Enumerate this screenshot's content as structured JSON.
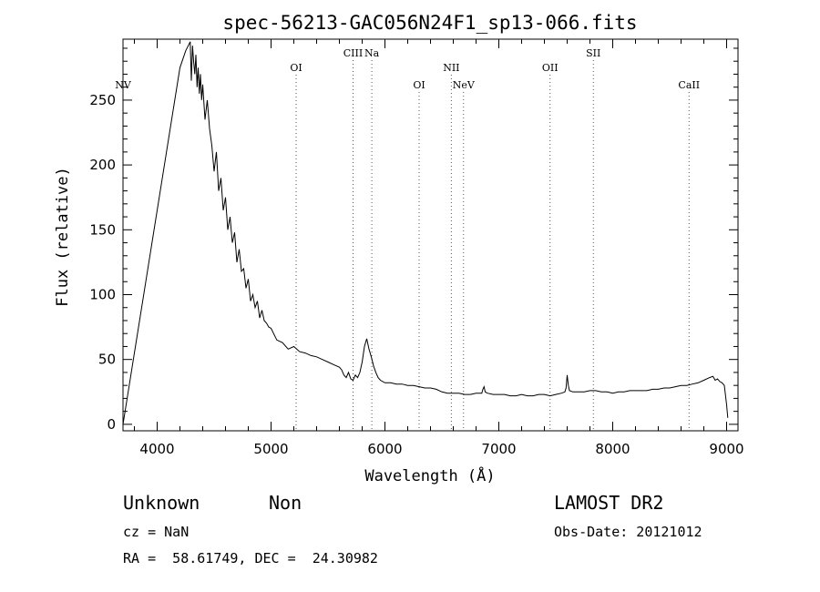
{
  "chart_data": {
    "type": "line",
    "title": "spec-56213-GAC056N24F1_sp13-066.fits",
    "xlabel": "Wavelength (Å)",
    "ylabel": "Flux (relative)",
    "xlim": [
      3700,
      9100
    ],
    "ylim": [
      -5,
      297
    ],
    "xticks": [
      4000,
      5000,
      6000,
      7000,
      8000,
      9000
    ],
    "yticks": [
      0,
      50,
      100,
      150,
      200,
      250
    ],
    "grid": false,
    "series": [
      {
        "x": [
          3700,
          3800,
          3900,
          4000,
          4100,
          4200,
          4250,
          4290,
          4300,
          4310,
          4320,
          4330,
          4340,
          4350,
          4360,
          4370,
          4380,
          4390,
          4400,
          4420,
          4440,
          4460,
          4480,
          4500,
          4520,
          4540,
          4560,
          4580,
          4600,
          4620,
          4640,
          4660,
          4680,
          4700,
          4720,
          4740,
          4760,
          4780,
          4800,
          4820,
          4840,
          4860,
          4880,
          4900,
          4920,
          4940,
          4960,
          4980,
          5000,
          5050,
          5100,
          5150,
          5200,
          5250,
          5300,
          5350,
          5400,
          5450,
          5500,
          5550,
          5600,
          5620,
          5640,
          5660,
          5680,
          5700,
          5720,
          5740,
          5760,
          5780,
          5800,
          5820,
          5840,
          5860,
          5880,
          5900,
          5920,
          5940,
          5960,
          6000,
          6050,
          6100,
          6150,
          6200,
          6250,
          6300,
          6350,
          6400,
          6450,
          6500,
          6550,
          6600,
          6650,
          6700,
          6750,
          6800,
          6850,
          6860,
          6870,
          6880,
          6900,
          6950,
          7000,
          7050,
          7100,
          7150,
          7200,
          7250,
          7300,
          7350,
          7400,
          7450,
          7500,
          7550,
          7580,
          7590,
          7600,
          7610,
          7620,
          7650,
          7700,
          7750,
          7800,
          7850,
          7900,
          7950,
          8000,
          8050,
          8100,
          8150,
          8200,
          8250,
          8300,
          8350,
          8400,
          8450,
          8500,
          8550,
          8600,
          8650,
          8700,
          8750,
          8800,
          8850,
          8880,
          8900,
          8920,
          8940,
          8960,
          8980,
          9000,
          9010
        ],
        "y": [
          0,
          55,
          110,
          165,
          220,
          275,
          288,
          295,
          265,
          292,
          280,
          270,
          285,
          260,
          275,
          255,
          270,
          250,
          262,
          235,
          250,
          228,
          215,
          195,
          210,
          180,
          190,
          165,
          175,
          150,
          160,
          140,
          148,
          125,
          135,
          118,
          120,
          105,
          112,
          95,
          100,
          90,
          95,
          82,
          88,
          80,
          78,
          75,
          74,
          65,
          63,
          58,
          60,
          56,
          55,
          53,
          52,
          50,
          48,
          46,
          44,
          42,
          38,
          36,
          40,
          35,
          34,
          38,
          36,
          40,
          48,
          60,
          66,
          58,
          52,
          45,
          40,
          36,
          34,
          32,
          32,
          31,
          31,
          30,
          30,
          29,
          28,
          28,
          27,
          25,
          24,
          24,
          24,
          23,
          23,
          24,
          24,
          27,
          29,
          25,
          24,
          23,
          23,
          23,
          22,
          22,
          23,
          22,
          22,
          23,
          23,
          22,
          23,
          24,
          25,
          28,
          38,
          30,
          26,
          25,
          25,
          25,
          26,
          26,
          25,
          25,
          24,
          25,
          25,
          26,
          26,
          26,
          26,
          27,
          27,
          28,
          28,
          29,
          30,
          30,
          31,
          32,
          34,
          36,
          37,
          34,
          35,
          33,
          32,
          30,
          15,
          5
        ]
      }
    ],
    "line_markers": [
      {
        "label": "NV",
        "x": 3700,
        "row": "low"
      },
      {
        "label": "OI",
        "x": 5220,
        "row": "mid"
      },
      {
        "label": "CIII",
        "x": 5720,
        "row": "high"
      },
      {
        "label": "Na",
        "x": 5885,
        "row": "high"
      },
      {
        "label": "OI",
        "x": 6300,
        "row": "low"
      },
      {
        "label": "NII",
        "x": 6583,
        "row": "mid"
      },
      {
        "label": "NeV",
        "x": 6690,
        "row": "low"
      },
      {
        "label": "OII",
        "x": 7450,
        "row": "mid"
      },
      {
        "label": "SII",
        "x": 7830,
        "row": "high"
      },
      {
        "label": "CaII",
        "x": 8670,
        "row": "low"
      }
    ]
  },
  "info": {
    "class_label": "Unknown",
    "subclass_label": "Non",
    "cz_text": "cz = NaN",
    "coords_text": "RA =  58.61749, DEC =  24.30982",
    "survey": "LAMOST DR2",
    "obs_date_text": "Obs-Date: 20121012"
  }
}
